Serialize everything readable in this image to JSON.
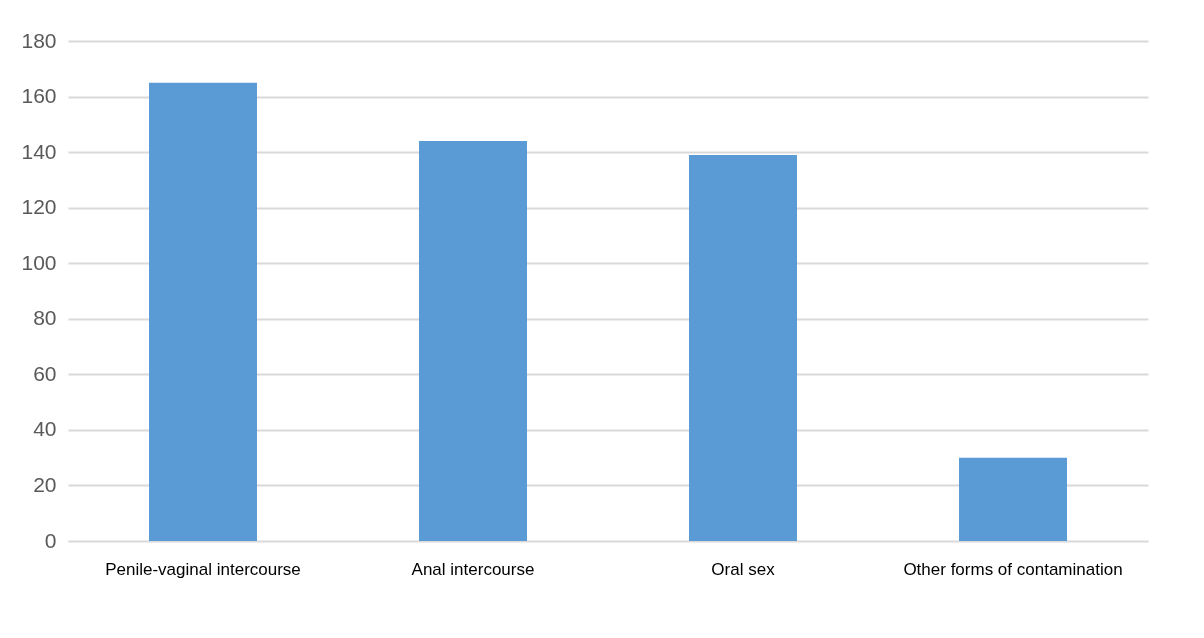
{
  "chart_data": {
    "type": "bar",
    "categories": [
      "Penile-vaginal intercourse",
      "Anal intercourse",
      "Oral sex",
      "Other forms of contamination"
    ],
    "values": [
      165,
      144,
      139,
      30
    ],
    "color": "#5b9bd5",
    "ylim": [
      0,
      180
    ],
    "yticks": [
      0,
      20,
      40,
      60,
      80,
      100,
      120,
      140,
      160,
      180
    ],
    "grid": "y"
  }
}
